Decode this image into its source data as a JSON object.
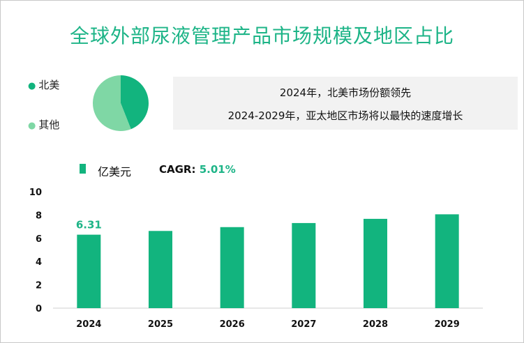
{
  "title": "全球外部尿液管理产品市场规模及地区占比",
  "pie": {
    "legend": [
      {
        "label": "北美",
        "color": "#12b47e",
        "share": 0.44
      },
      {
        "label": "其他",
        "color": "#7fd7a5",
        "share": 0.56
      }
    ]
  },
  "info": {
    "line1": "2024年，北美市场份额领先",
    "line2": "2024-2029年，亚太地区市场将以最快的速度增长"
  },
  "legend_label": "亿美元",
  "cagr": {
    "label": "CAGR: ",
    "value": "5.01%"
  },
  "colors": {
    "bar": "#12b47e",
    "accent": "#1db487"
  },
  "chart_data": {
    "type": "bar",
    "categories": [
      "2024",
      "2025",
      "2026",
      "2027",
      "2028",
      "2029"
    ],
    "values": [
      6.31,
      6.63,
      6.96,
      7.31,
      7.67,
      8.06
    ],
    "data_labels": [
      "6.31",
      "",
      "",
      "",
      "",
      ""
    ],
    "yticks": [
      "0",
      "2",
      "4",
      "6",
      "8",
      "10"
    ],
    "ylim": [
      0,
      10
    ],
    "ylabel": "",
    "xlabel": "",
    "grid": false
  }
}
